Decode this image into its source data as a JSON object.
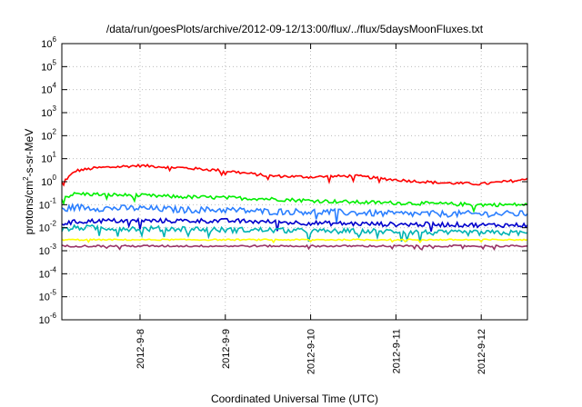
{
  "chart_data": {
    "type": "line",
    "title": "/data/run/goesPlots/archive/2012-09-12/13:00/flux/../flux/5daysMoonFluxes.txt",
    "xlabel": "Coordinated Universal Time (UTC)",
    "ylabel": {
      "prefix": "protons/cm",
      "superscript": "2",
      "suffix": "-s-sr-MeV"
    },
    "yscale": "log",
    "ylim": [
      1e-06,
      1000000.0
    ],
    "y_tick_labels": [
      {
        "base": "10",
        "exp": "-6",
        "value": 1e-06
      },
      {
        "base": "10",
        "exp": "-5",
        "value": 1e-05
      },
      {
        "base": "10",
        "exp": "-4",
        "value": 0.0001
      },
      {
        "base": "10",
        "exp": "-3",
        "value": 0.001
      },
      {
        "base": "10",
        "exp": "-2",
        "value": 0.01
      },
      {
        "base": "10",
        "exp": "-1",
        "value": 0.1
      },
      {
        "base": "10",
        "exp": "0",
        "value": 1.0
      },
      {
        "base": "10",
        "exp": "1",
        "value": 10.0
      },
      {
        "base": "10",
        "exp": "2",
        "value": 100.0
      },
      {
        "base": "10",
        "exp": "3",
        "value": 1000.0
      },
      {
        "base": "10",
        "exp": "4",
        "value": 10000.0
      },
      {
        "base": "10",
        "exp": "5",
        "value": 100000.0
      },
      {
        "base": "10",
        "exp": "6",
        "value": 1000000.0
      }
    ],
    "xlim": [
      "2012-09-07T02:00",
      "2012-09-12T13:00"
    ],
    "x_ticks": [
      {
        "label": "2012-9-8",
        "value": "2012-09-08T00:00"
      },
      {
        "label": "2012-9-9",
        "value": "2012-09-09T00:00"
      },
      {
        "label": "2012-9-10",
        "value": "2012-09-10T00:00"
      },
      {
        "label": "2012-9-11",
        "value": "2012-09-11T00:00"
      },
      {
        "label": "2012-9-12",
        "value": "2012-09-12T00:00"
      }
    ],
    "grid": true,
    "legend": "none",
    "series": [
      {
        "color": "#ff0000",
        "x": [
          "2012-09-07T02:00",
          "2012-09-07T06:00",
          "2012-09-07T12:00",
          "2012-09-08T00:00",
          "2012-09-08T12:00",
          "2012-09-09T00:00",
          "2012-09-09T12:00",
          "2012-09-10T00:00",
          "2012-09-10T12:00",
          "2012-09-11T00:00",
          "2012-09-11T12:00",
          "2012-09-12T00:00",
          "2012-09-12T12:00",
          "2012-09-12T13:00"
        ],
        "values": [
          0.9,
          3.0,
          4.0,
          5.0,
          4.0,
          3.0,
          1.8,
          1.6,
          1.8,
          1.2,
          0.9,
          0.8,
          1.2,
          1.4
        ]
      },
      {
        "color": "#00ee00",
        "x": [
          "2012-09-07T02:00",
          "2012-09-07T06:00",
          "2012-09-07T12:00",
          "2012-09-08T00:00",
          "2012-09-08T12:00",
          "2012-09-09T00:00",
          "2012-09-09T12:00",
          "2012-09-10T00:00",
          "2012-09-10T12:00",
          "2012-09-11T00:00",
          "2012-09-11T12:00",
          "2012-09-12T00:00",
          "2012-09-12T12:00",
          "2012-09-12T13:00"
        ],
        "values": [
          0.2,
          0.3,
          0.28,
          0.25,
          0.22,
          0.2,
          0.18,
          0.15,
          0.13,
          0.12,
          0.11,
          0.1,
          0.1,
          0.1
        ]
      },
      {
        "color": "#2b7fff",
        "x": [
          "2012-09-07T02:00",
          "2012-09-07T06:00",
          "2012-09-07T12:00",
          "2012-09-08T00:00",
          "2012-09-08T12:00",
          "2012-09-09T00:00",
          "2012-09-09T12:00",
          "2012-09-10T00:00",
          "2012-09-10T12:00",
          "2012-09-11T00:00",
          "2012-09-11T12:00",
          "2012-09-12T00:00",
          "2012-09-12T12:00",
          "2012-09-12T13:00"
        ],
        "values": [
          0.06,
          0.08,
          0.07,
          0.07,
          0.06,
          0.06,
          0.05,
          0.05,
          0.045,
          0.04,
          0.04,
          0.04,
          0.04,
          0.04
        ]
      },
      {
        "color": "#0000cc",
        "x": [
          "2012-09-07T02:00",
          "2012-09-07T06:00",
          "2012-09-07T12:00",
          "2012-09-08T00:00",
          "2012-09-08T12:00",
          "2012-09-09T00:00",
          "2012-09-09T12:00",
          "2012-09-10T00:00",
          "2012-09-10T12:00",
          "2012-09-11T00:00",
          "2012-09-11T12:00",
          "2012-09-12T00:00",
          "2012-09-12T12:00",
          "2012-09-12T13:00"
        ],
        "values": [
          0.015,
          0.018,
          0.02,
          0.02,
          0.02,
          0.02,
          0.018,
          0.016,
          0.015,
          0.014,
          0.014,
          0.013,
          0.013,
          0.013
        ]
      },
      {
        "color": "#00b3b3",
        "x": [
          "2012-09-07T02:00",
          "2012-09-07T06:00",
          "2012-09-07T12:00",
          "2012-09-08T00:00",
          "2012-09-08T12:00",
          "2012-09-09T00:00",
          "2012-09-09T12:00",
          "2012-09-10T00:00",
          "2012-09-10T12:00",
          "2012-09-11T00:00",
          "2012-09-11T12:00",
          "2012-09-12T00:00",
          "2012-09-12T12:00",
          "2012-09-12T13:00"
        ],
        "values": [
          0.008,
          0.01,
          0.01,
          0.009,
          0.009,
          0.008,
          0.008,
          0.007,
          0.007,
          0.007,
          0.006,
          0.006,
          0.006,
          0.006
        ]
      },
      {
        "color": "#ffff00",
        "x": [
          "2012-09-07T02:00",
          "2012-09-07T06:00",
          "2012-09-07T12:00",
          "2012-09-08T00:00",
          "2012-09-08T12:00",
          "2012-09-09T00:00",
          "2012-09-09T12:00",
          "2012-09-10T00:00",
          "2012-09-10T12:00",
          "2012-09-11T00:00",
          "2012-09-11T12:00",
          "2012-09-12T00:00",
          "2012-09-12T12:00",
          "2012-09-12T13:00"
        ],
        "values": [
          0.003,
          0.003,
          0.003,
          0.003,
          0.003,
          0.003,
          0.003,
          0.003,
          0.003,
          0.003,
          0.003,
          0.003,
          0.003,
          0.003
        ]
      },
      {
        "color": "#993366",
        "x": [
          "2012-09-07T02:00",
          "2012-09-07T06:00",
          "2012-09-07T12:00",
          "2012-09-08T00:00",
          "2012-09-08T12:00",
          "2012-09-09T00:00",
          "2012-09-09T12:00",
          "2012-09-10T00:00",
          "2012-09-10T12:00",
          "2012-09-11T00:00",
          "2012-09-11T12:00",
          "2012-09-12T00:00",
          "2012-09-12T12:00",
          "2012-09-12T13:00"
        ],
        "values": [
          0.0016,
          0.0016,
          0.0016,
          0.0016,
          0.0016,
          0.0016,
          0.0016,
          0.0016,
          0.0016,
          0.0016,
          0.0016,
          0.0016,
          0.0016,
          0.0016
        ]
      }
    ]
  }
}
